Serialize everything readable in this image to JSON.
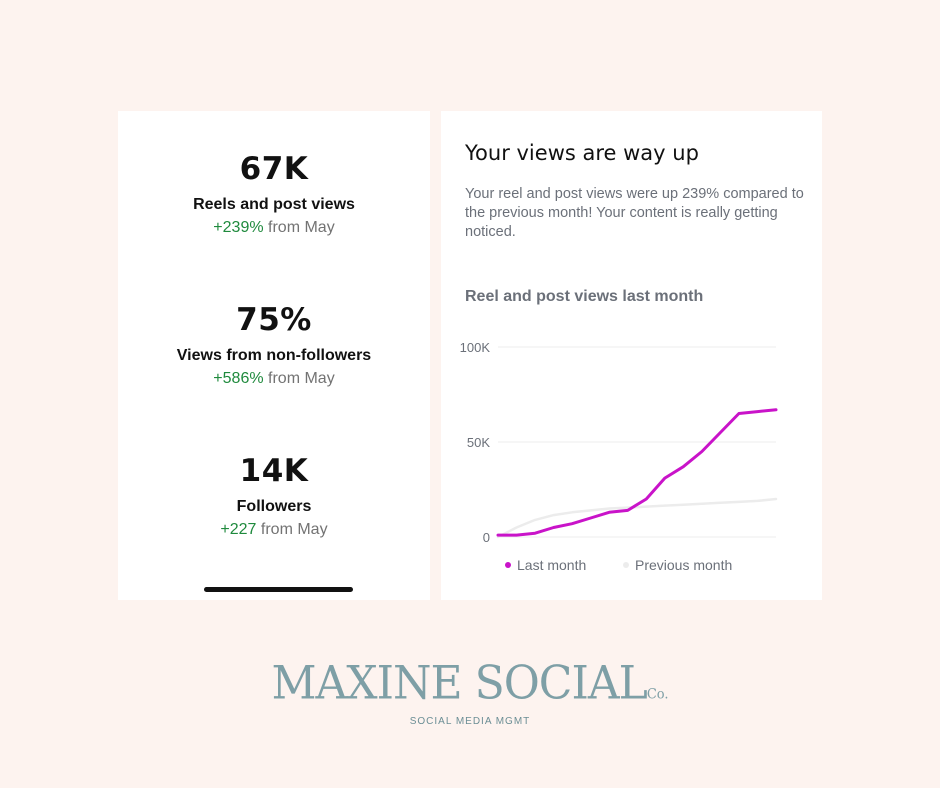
{
  "metrics": [
    {
      "value": "67K",
      "label": "Reels and post views",
      "delta": "+239%",
      "suffix": "from May"
    },
    {
      "value": "75%",
      "label": "Views from non-followers",
      "delta": "+586%",
      "suffix": "from May"
    },
    {
      "value": "14K",
      "label": "Followers",
      "delta": "+227",
      "suffix": "from May"
    }
  ],
  "insight": {
    "headline": "Your views are way up",
    "description": "Your reel and post views were up 239% compared to the previous month! Your content is really getting noticed."
  },
  "chart_data": {
    "type": "line",
    "title": "Reel and post views last month",
    "y_ticks": [
      "100K",
      "50K",
      "0"
    ],
    "ylim": [
      0,
      100000
    ],
    "x": [
      0,
      1,
      2,
      3,
      4,
      5,
      6,
      7,
      8,
      9,
      10,
      11,
      12,
      13,
      14,
      15
    ],
    "series": [
      {
        "name": "Last month",
        "color": "#c913c9",
        "values": [
          1000,
          1000,
          2000,
          5000,
          7000,
          10000,
          13000,
          14000,
          20000,
          31000,
          37000,
          45000,
          55000,
          65000,
          66000,
          67000
        ]
      },
      {
        "name": "Previous month",
        "color": "#ececec",
        "values": [
          0,
          5000,
          9000,
          11500,
          13000,
          14000,
          15000,
          15500,
          16000,
          16500,
          17000,
          17500,
          18000,
          18500,
          19000,
          20000
        ]
      }
    ],
    "grid": true,
    "legend_position": "bottom"
  },
  "brand": {
    "name": "MAXINE SOCIAL",
    "suffix": "Co.",
    "tagline": "SOCIAL MEDIA MGMT"
  }
}
